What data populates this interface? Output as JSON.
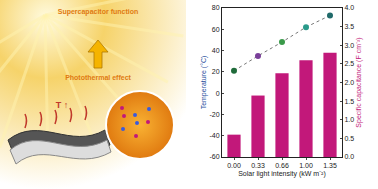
{
  "illustration": {
    "labels": [
      "Supercapacitor function",
      "Photothermal effect",
      "T ↑"
    ]
  },
  "chart_data": {
    "type": "bar",
    "x_label": "Solar light intensity (kW m⁻²)",
    "y_label": "Temperature (°C)",
    "y2_label": "Specific capacitance (F cm⁻²)",
    "categories": [
      "0.00",
      "0.33",
      "0.66",
      "1.00",
      "1.35"
    ],
    "series": [
      {
        "name": "Temperature",
        "type": "scatter",
        "marker": "circle",
        "line_style": "dot",
        "colors": [
          "#1f6b3a",
          "#7a3f9a",
          "#3a9a4a",
          "#2a9a8a",
          "#206a6a"
        ],
        "values": [
          21,
          35,
          48,
          62,
          73
        ]
      },
      {
        "name": "Specific capacitance",
        "type": "bar",
        "axis": "y2",
        "color": "#c2187a",
        "values": [
          0.6,
          1.65,
          2.25,
          2.6,
          2.8
        ]
      }
    ],
    "ylim": [
      -60,
      80
    ],
    "yticks": [
      -60,
      -40,
      -20,
      0,
      20,
      40,
      60,
      80
    ],
    "y2lim": [
      0,
      4
    ],
    "y2ticks": [
      {
        "value": 0,
        "label": "0.0"
      },
      {
        "value": 0.5,
        "label": "0.5"
      },
      {
        "value": 1,
        "label": "1.0"
      },
      {
        "value": 1.5,
        "label": "1.5"
      },
      {
        "value": 2,
        "label": "2.0"
      },
      {
        "value": 2.5,
        "label": "2.5"
      },
      {
        "value": 3,
        "label": "3.0"
      },
      {
        "value": 3.5,
        "label": "3.5"
      },
      {
        "value": 4,
        "label": "4.0"
      }
    ],
    "grid": false,
    "legend": false
  }
}
